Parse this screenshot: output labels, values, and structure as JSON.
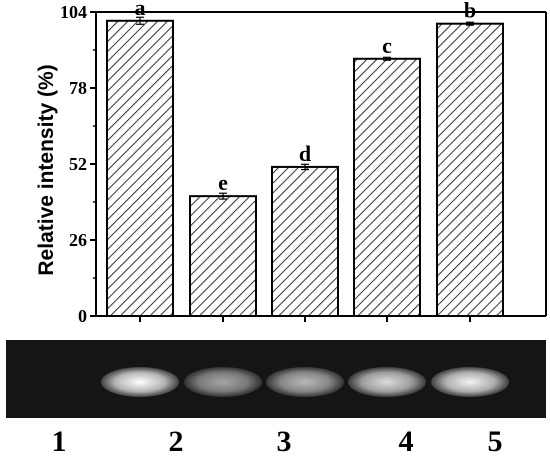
{
  "chart_data": {
    "type": "bar",
    "categories": [
      "1",
      "2",
      "3",
      "4",
      "5"
    ],
    "values": [
      101,
      41,
      51,
      88,
      100
    ],
    "errors": [
      1.2,
      1.0,
      0.9,
      0.5,
      0.5
    ],
    "significance_letters": [
      "a",
      "e",
      "d",
      "c",
      "b"
    ],
    "ylabel": "Relative intensity (%)",
    "xlabel": "",
    "ylim": [
      0,
      104
    ],
    "yticks": [
      "0",
      "26",
      "52",
      "78",
      "104"
    ],
    "bar_fill": "hatched",
    "grid": false,
    "legend": "none"
  },
  "gel": {
    "background": "#151515",
    "band_color": "#ffffff",
    "band_intensity": [
      1.0,
      0.62,
      0.7,
      0.85,
      0.95
    ]
  },
  "lane_labels": [
    "1",
    "2",
    "3",
    "4",
    "5"
  ]
}
